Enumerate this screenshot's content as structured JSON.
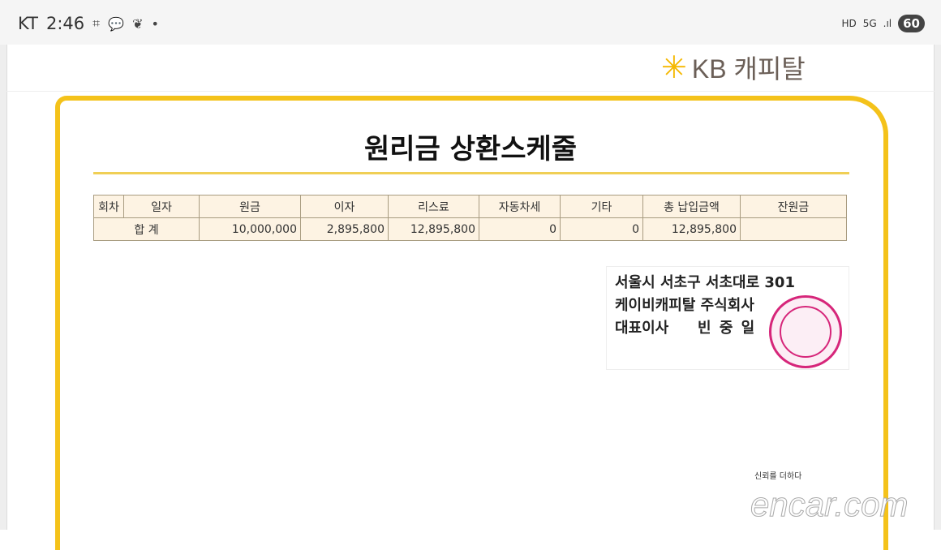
{
  "status_bar": {
    "carrier": "KT",
    "time": "2:46",
    "icons": [
      "screenshot-icon",
      "kakaotalk-icon",
      "leaf-icon",
      "dot-icon"
    ],
    "right_icons": [
      "hd-icon",
      "5g-icon",
      "signal-icon"
    ],
    "battery": "60"
  },
  "logo": {
    "text": "KB 캐피탈",
    "brand_color": "#f5b800"
  },
  "title": "원리금 상환스케줄",
  "table": {
    "headers": [
      "회차",
      "일자",
      "원금",
      "이자",
      "리스료",
      "자동차세",
      "기타",
      "총 납입금액",
      "잔원금"
    ],
    "total_row": {
      "label": "합 계",
      "values": [
        "10,000,000",
        "2,895,800",
        "12,895,800",
        "0",
        "0",
        "12,895,800",
        ""
      ]
    }
  },
  "company": {
    "address": "서울시 서초구 서초대로 301",
    "name": "케이비캐피탈 주식회사",
    "ceo_title": "대표이사",
    "ceo_name": "빈 중 일"
  },
  "watermark": {
    "tagline": "신뢰를 더하다",
    "text": "encar.com"
  },
  "accent_color": "#f4c21a"
}
